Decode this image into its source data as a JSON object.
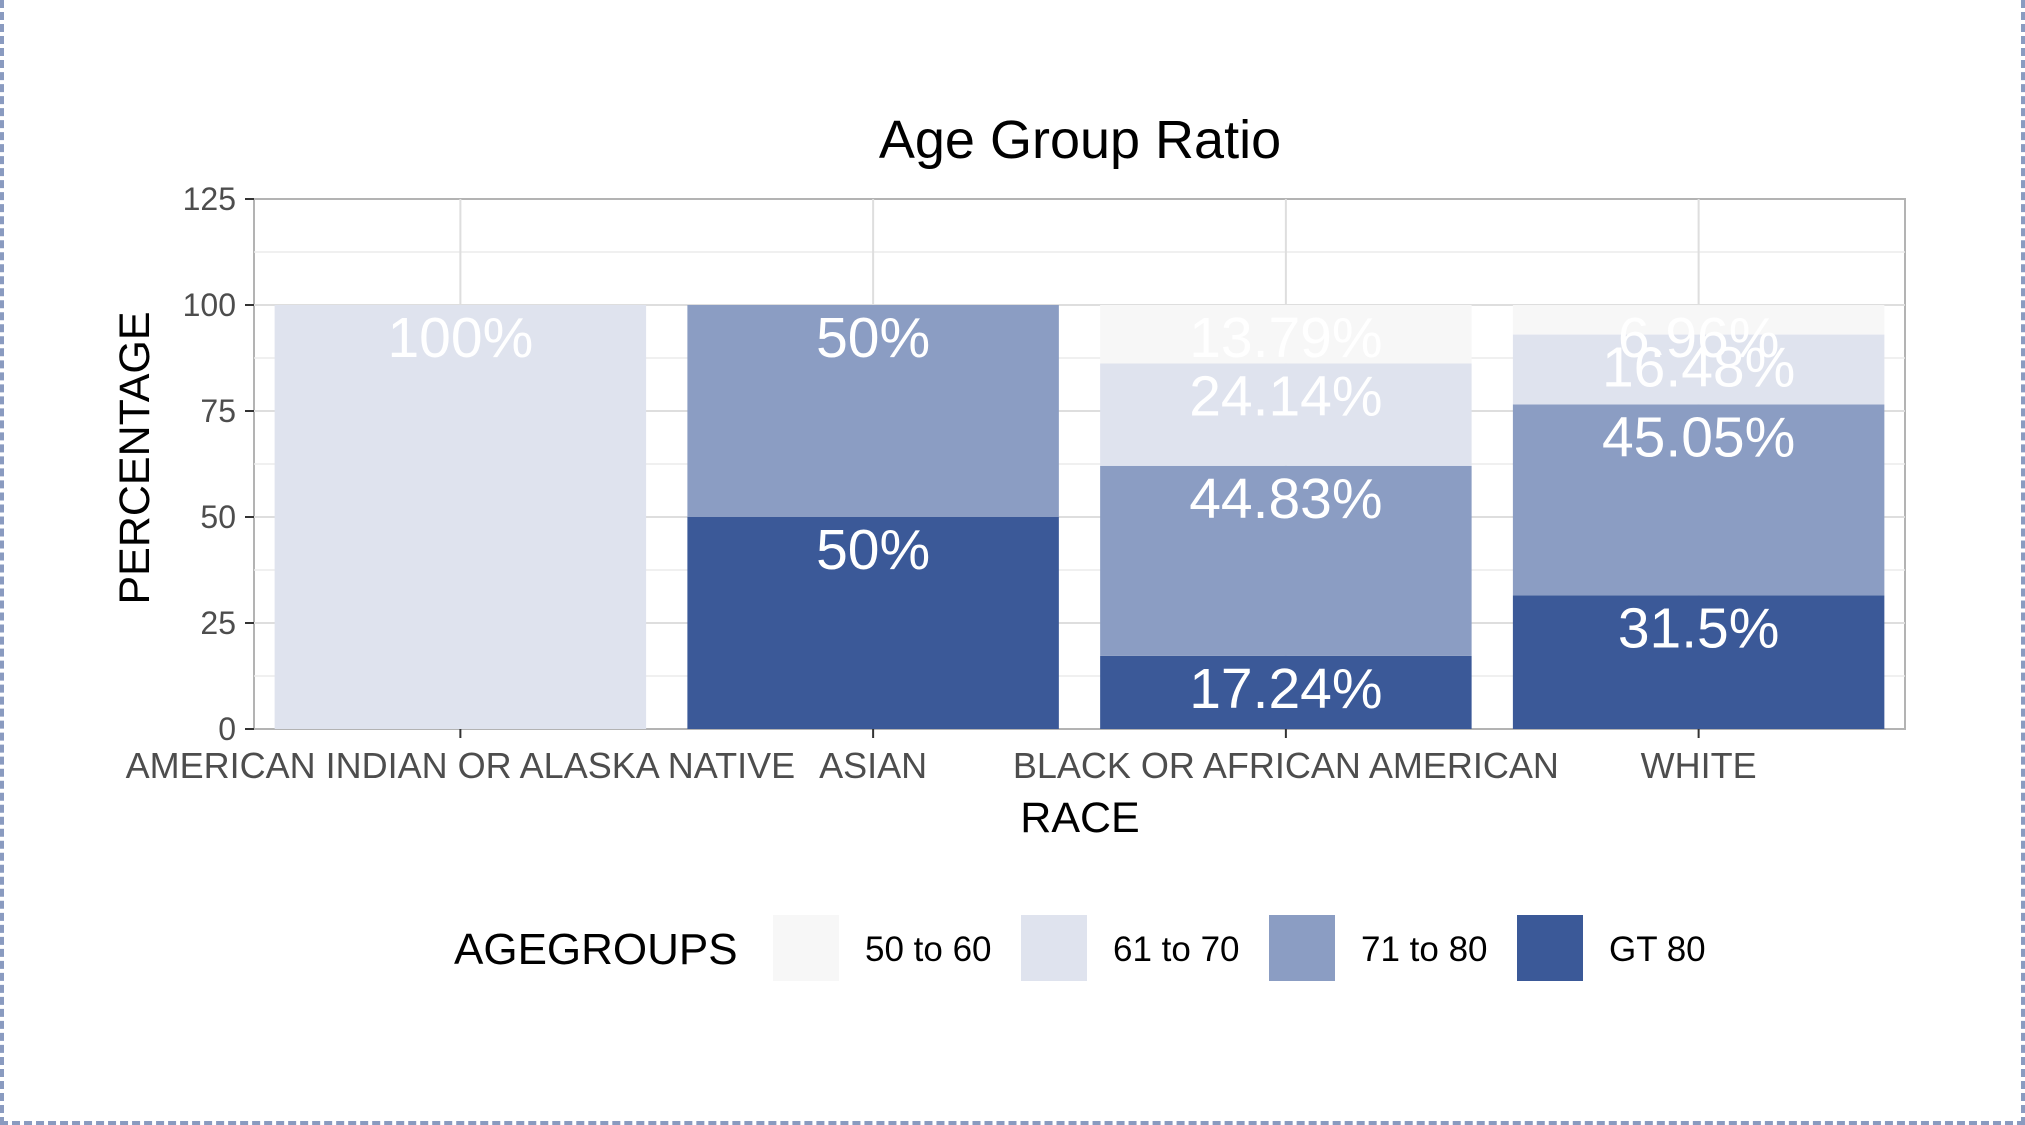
{
  "chart_data": {
    "type": "bar",
    "stacked": true,
    "title": "Age Group Ratio",
    "xlabel": "RACE",
    "ylabel": "PERCENTAGE",
    "ylim": [
      0,
      125
    ],
    "yticks": [
      "0",
      "25",
      "50",
      "75",
      "100",
      "125"
    ],
    "ytick_values": [
      0,
      25,
      50,
      75,
      100,
      125
    ],
    "grid": true,
    "categories": [
      "AMERICAN INDIAN OR ALASKA NATIVE",
      "ASIAN",
      "BLACK OR AFRICAN AMERICAN",
      "WHITE"
    ],
    "series": [
      {
        "name": "GT 80",
        "color": "#3b5998",
        "values": [
          0,
          50,
          17.24,
          31.5
        ],
        "labels": [
          "",
          "50%",
          "17.24%",
          "31.5%"
        ]
      },
      {
        "name": "71 to 80",
        "color": "#8b9dc3",
        "values": [
          0,
          50,
          44.83,
          45.05
        ],
        "labels": [
          "",
          "50%",
          "44.83%",
          "45.05%"
        ]
      },
      {
        "name": "61 to 70",
        "color": "#dfe3ee",
        "values": [
          100,
          0,
          24.14,
          16.48
        ],
        "labels": [
          "100%",
          "",
          "24.14%",
          "16.48%"
        ]
      },
      {
        "name": "50 to 60",
        "color": "#f7f7f7",
        "values": [
          0,
          0,
          13.79,
          6.96
        ],
        "labels": [
          "",
          "",
          "13.79%",
          "6.96%"
        ]
      }
    ],
    "legend": {
      "title": "AGEGROUPS",
      "position": "bottom",
      "order": [
        "50 to 60",
        "61 to 70",
        "71 to 80",
        "GT 80"
      ]
    }
  }
}
